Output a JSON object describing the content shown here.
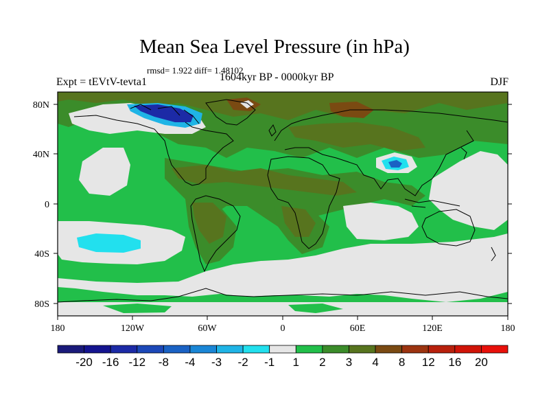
{
  "title": "Mean Sea Level Pressure (in hPa)",
  "stats": "rmsd= 1.922 diff= 1.48102",
  "experiment": "Expt = tEVtV-tevta1",
  "period": "1604kyr BP - 0000kyr BP",
  "season": "DJF",
  "lat_ticks": [
    "80N",
    "40N",
    "0",
    "40S",
    "80S"
  ],
  "lon_ticks": [
    "180",
    "120W",
    "60W",
    "0",
    "60E",
    "120E",
    "180"
  ],
  "colorbar": {
    "labels": [
      "-20",
      "-16",
      "-12",
      "-8",
      "-4",
      "-3",
      "-2",
      "-1",
      "1",
      "2",
      "3",
      "4",
      "8",
      "12",
      "16",
      "20"
    ],
    "colors": [
      "#1a1a7a",
      "#14148f",
      "#1c2aa6",
      "#1c48b8",
      "#1a62c4",
      "#1a86d6",
      "#1fb4e6",
      "#22e0ee",
      "#e6e6e6",
      "#22bf4a",
      "#3b8c2a",
      "#57741e",
      "#7a4a12",
      "#9c3410",
      "#b8200c",
      "#d01408",
      "#e8100a"
    ]
  },
  "colors": {
    "ocean_low": "#e6e6e6",
    "positive_2": "#22bf4a",
    "positive_3": "#3b8c2a",
    "positive_4": "#57741e",
    "positive_8": "#7a4a12",
    "negative_1": "#22e0ee",
    "negative_2": "#1fb4e6",
    "negative_3": "#1a62c4",
    "negative_4": "#1c2aa6"
  }
}
